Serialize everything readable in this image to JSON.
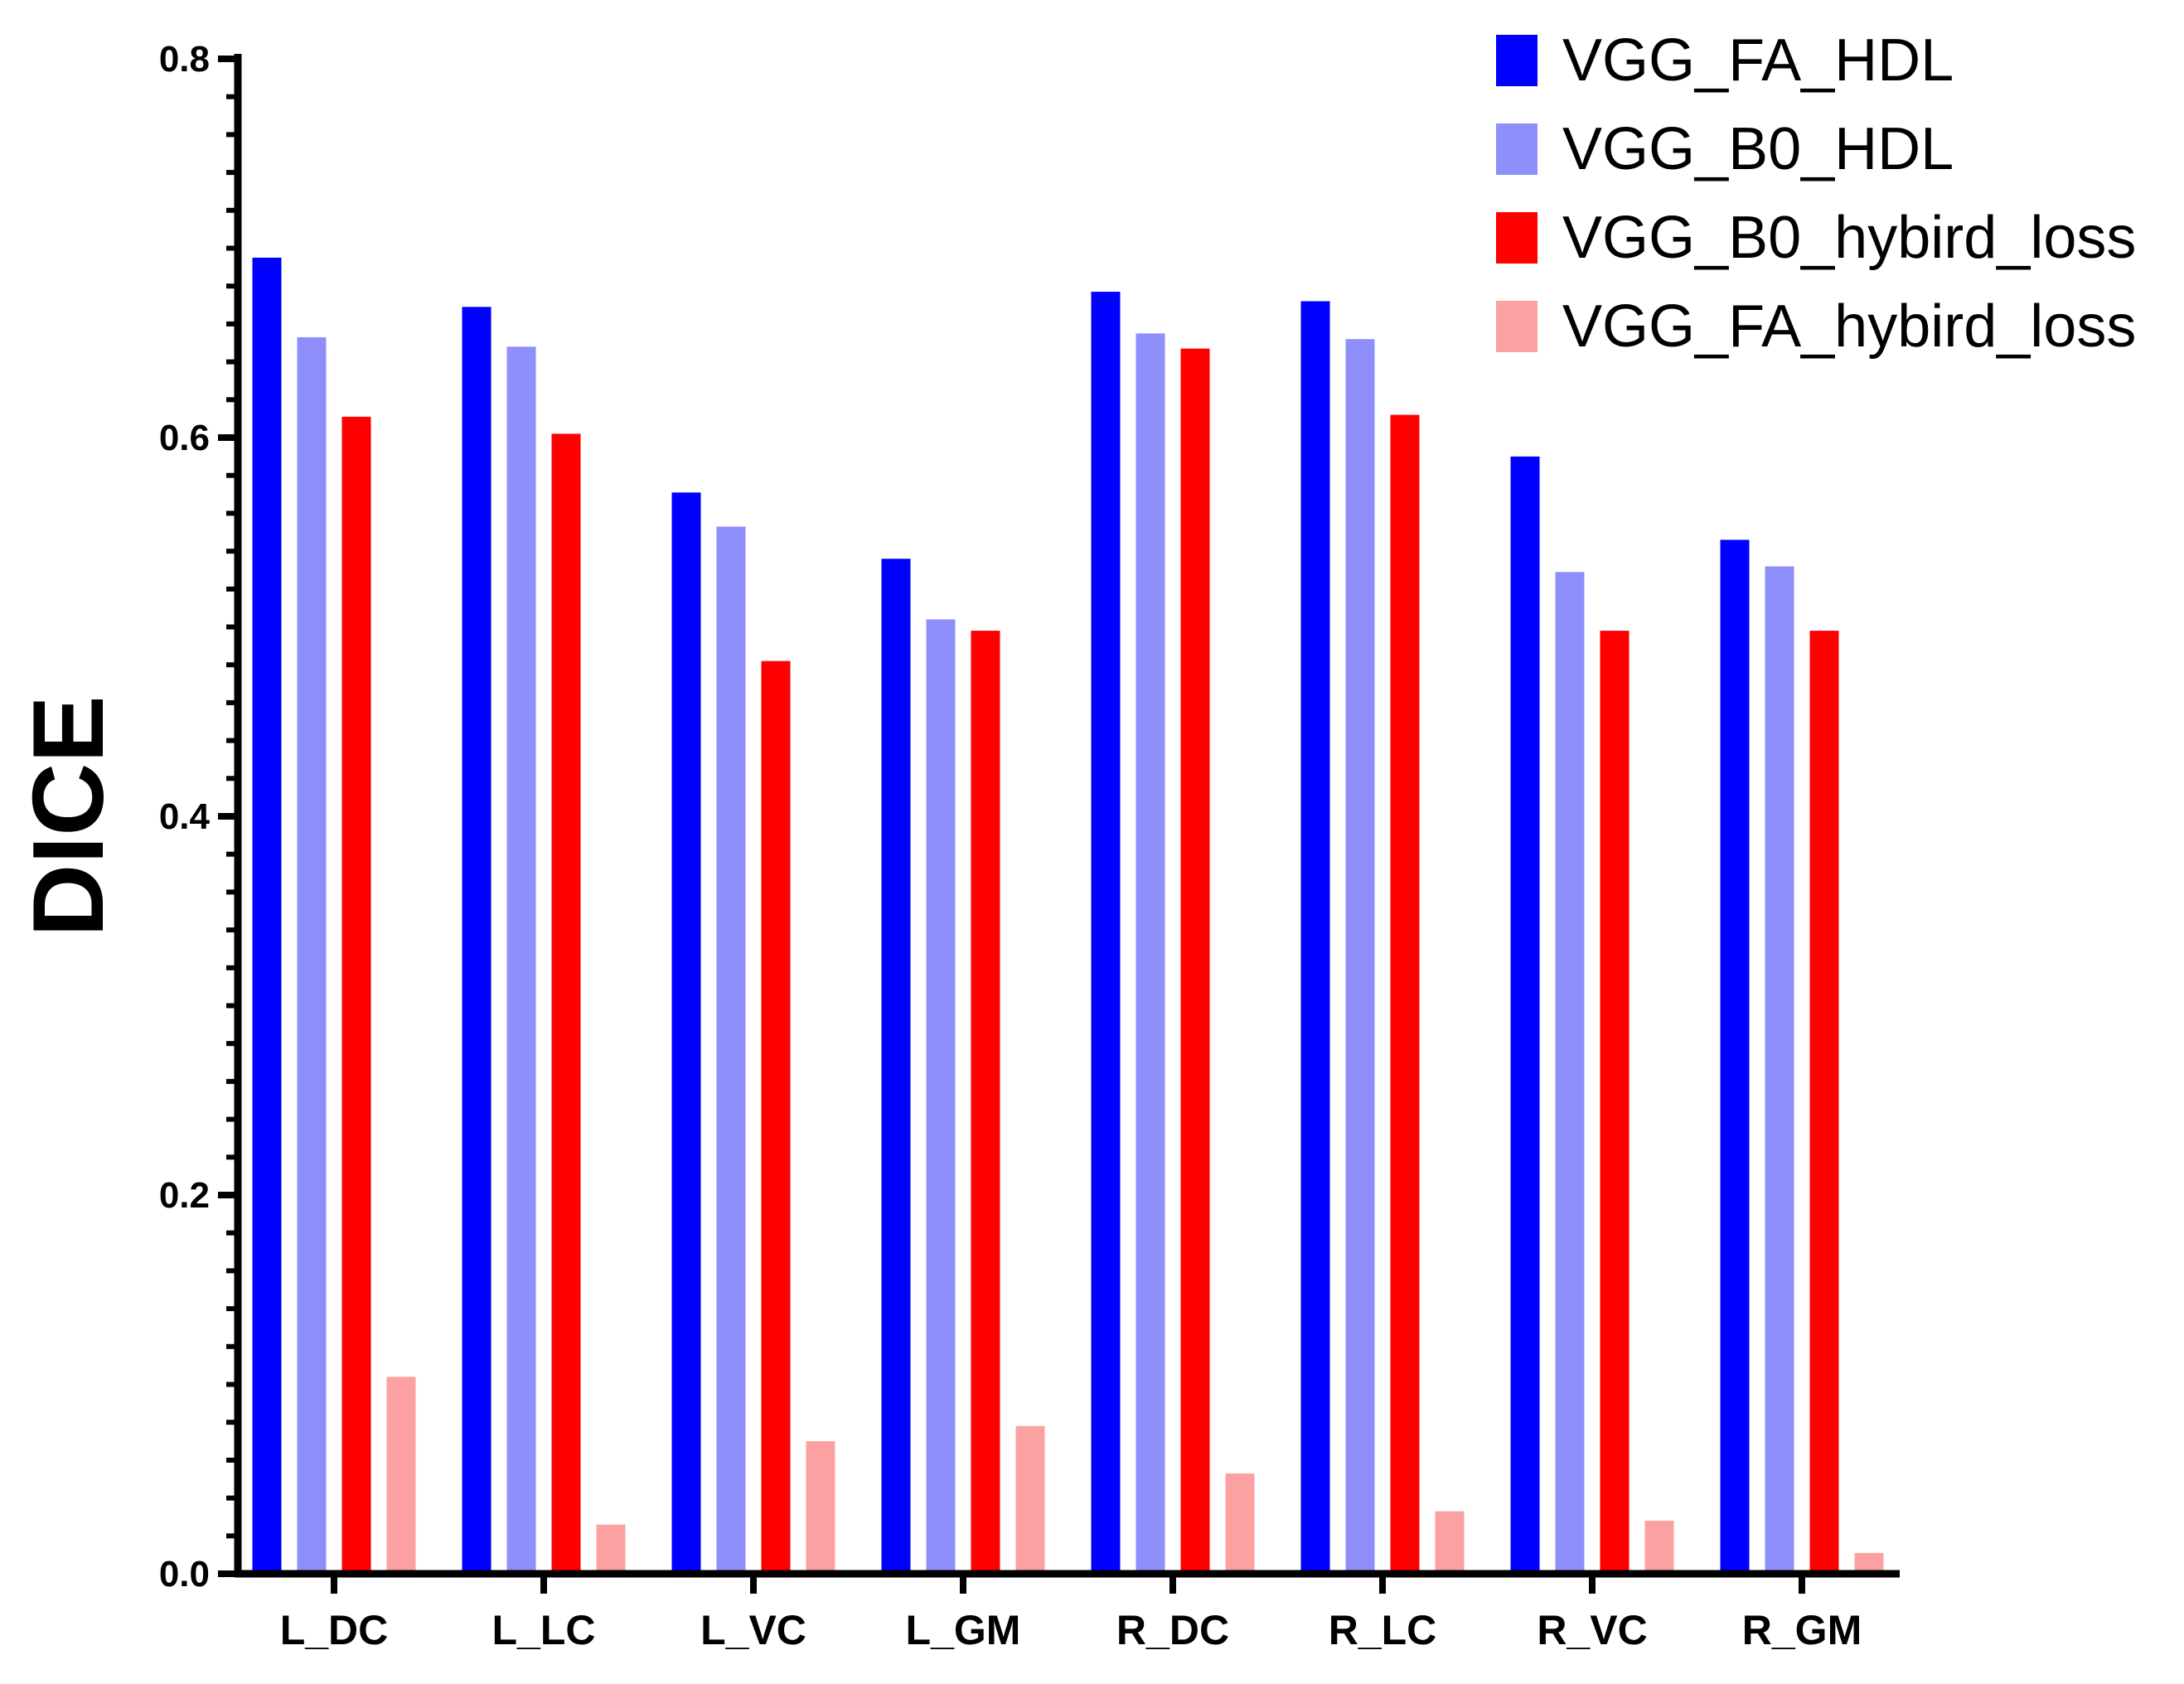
{
  "chart_data": {
    "type": "bar",
    "title": "",
    "xlabel": "",
    "ylabel": "DICE",
    "ylim": [
      0,
      0.8
    ],
    "yticks": [
      "0.0",
      "0.2",
      "0.4",
      "0.6",
      "0.8"
    ],
    "grid": false,
    "legend_position": "top-right",
    "categories": [
      "L_DC",
      "L_LC",
      "L_VC",
      "L_GM",
      "R_DC",
      "R_LC",
      "R_VC",
      "R_GM"
    ],
    "series": [
      {
        "name": "VGG_FA_HDL",
        "color": "#0000ff",
        "values": [
          0.695,
          0.669,
          0.571,
          0.536,
          0.677,
          0.672,
          0.59,
          0.546
        ]
      },
      {
        "name": "VGG_B0_HDL",
        "color": "#8f8ffc",
        "values": [
          0.653,
          0.648,
          0.553,
          0.504,
          0.655,
          0.652,
          0.529,
          0.532
        ]
      },
      {
        "name": "VGG_B0_hybird_loss",
        "color": "#ff0000",
        "values": [
          0.611,
          0.602,
          0.482,
          0.498,
          0.647,
          0.612,
          0.498,
          0.498
        ]
      },
      {
        "name": "VGG_FA_hybird_loss",
        "color": "#fca1a1",
        "values": [
          0.104,
          0.026,
          0.07,
          0.078,
          0.053,
          0.033,
          0.028,
          0.011
        ]
      }
    ]
  }
}
